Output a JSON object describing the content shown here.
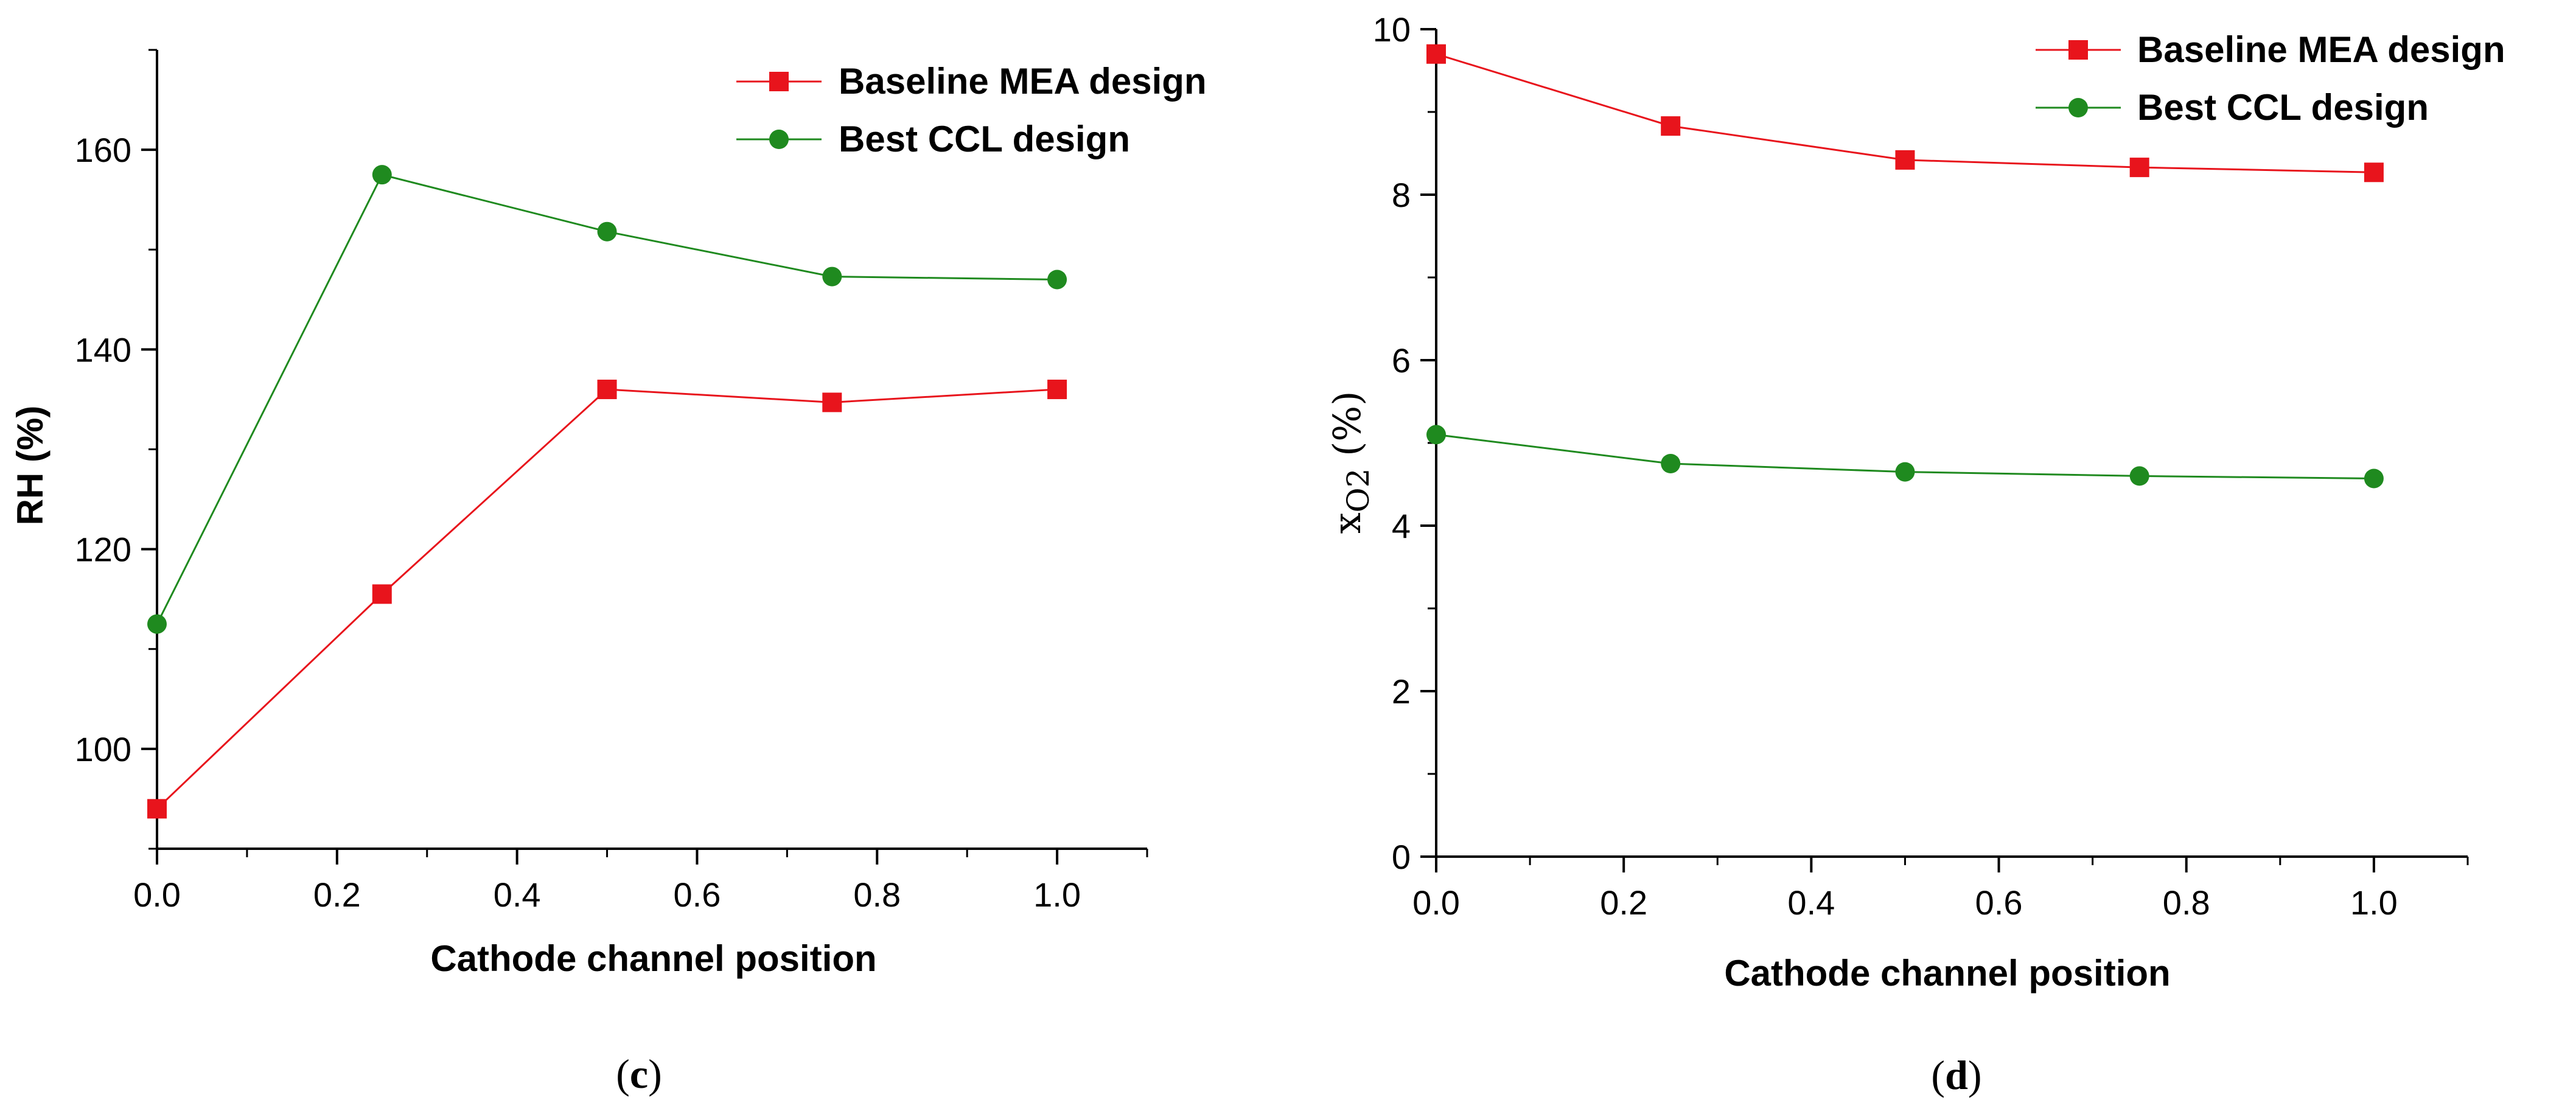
{
  "chart_data": [
    {
      "type": "line",
      "panel": "c",
      "title": "",
      "xlabel": "Cathode channel position",
      "ylabel": "RH (%)",
      "xlim": [
        0.0,
        1.1
      ],
      "ylim": [
        90,
        170
      ],
      "xticks": [
        0.0,
        0.2,
        0.4,
        0.6,
        0.8,
        1.0
      ],
      "xtick_labels": [
        "0.0",
        "0.2",
        "0.4",
        "0.6",
        "0.8",
        "1.0"
      ],
      "yticks": [
        100,
        120,
        140,
        160
      ],
      "ytick_labels": [
        "100",
        "120",
        "140",
        "160"
      ],
      "grid": false,
      "legend_position": "top-right",
      "x": [
        0.0,
        0.25,
        0.5,
        0.75,
        1.0
      ],
      "series": [
        {
          "name": "Baseline MEA design",
          "color": "#e8141c",
          "marker": "square",
          "values": [
            94,
            115.5,
            136,
            134.7,
            136
          ]
        },
        {
          "name": "Best CCL design",
          "color": "#1f8a1f",
          "marker": "circle",
          "values": [
            112.5,
            157.5,
            151.8,
            147.3,
            147
          ]
        }
      ]
    },
    {
      "type": "line",
      "panel": "d",
      "title": "",
      "xlabel": "Cathode channel position",
      "ylabel_main": "x",
      "ylabel_sub": "O2",
      "ylabel_unit": " (%)",
      "xlim": [
        0.0,
        1.1
      ],
      "ylim": [
        0,
        10
      ],
      "xticks": [
        0.0,
        0.2,
        0.4,
        0.6,
        0.8,
        1.0
      ],
      "xtick_labels": [
        "0.0",
        "0.2",
        "0.4",
        "0.6",
        "0.8",
        "1.0"
      ],
      "yticks": [
        0,
        2,
        4,
        6,
        8,
        10
      ],
      "ytick_labels": [
        "0",
        "2",
        "4",
        "6",
        "8",
        "10"
      ],
      "grid": false,
      "legend_position": "top-right",
      "x": [
        0.0,
        0.25,
        0.5,
        0.75,
        1.0
      ],
      "series": [
        {
          "name": "Baseline MEA design",
          "color": "#e8141c",
          "marker": "square",
          "values": [
            9.7,
            8.83,
            8.42,
            8.33,
            8.27
          ]
        },
        {
          "name": "Best CCL design",
          "color": "#1f8a1f",
          "marker": "circle",
          "values": [
            5.1,
            4.75,
            4.65,
            4.6,
            4.57
          ]
        }
      ]
    }
  ],
  "captions": {
    "c": {
      "open": "(",
      "letter": "c",
      "close": ")"
    },
    "d": {
      "open": "(",
      "letter": "d",
      "close": ")"
    }
  }
}
